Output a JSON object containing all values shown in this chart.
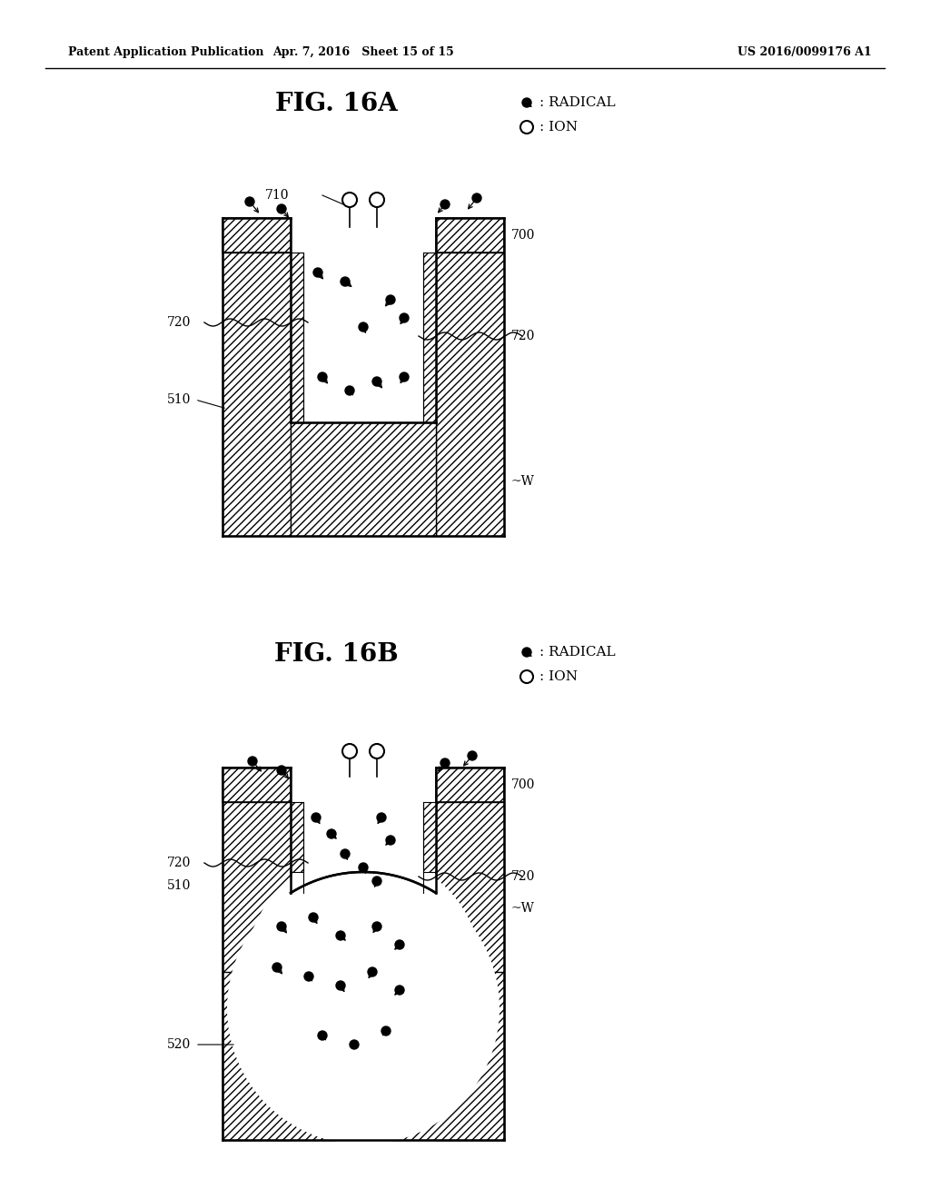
{
  "header_left": "Patent Application Publication",
  "header_mid": "Apr. 7, 2016   Sheet 15 of 15",
  "header_right": "US 2016/0099176 A1",
  "fig_a_title": "FIG. 16A",
  "fig_b_title": "FIG. 16B",
  "legend_radical": ": RADICAL",
  "legend_ion": ": ION",
  "label_700": "700",
  "label_710": "710",
  "label_720": "720",
  "label_510": "510",
  "label_W": "~W",
  "label_520": "520",
  "bg_color": "#ffffff"
}
